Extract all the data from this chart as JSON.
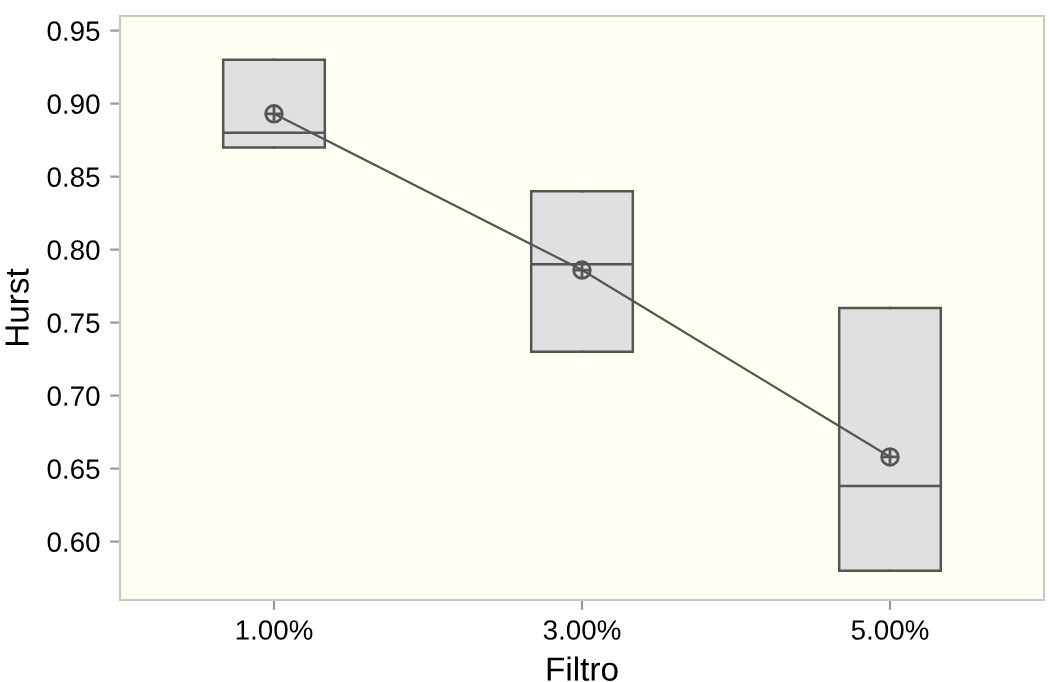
{
  "chart_data": {
    "type": "box",
    "xlabel": "Filtro",
    "ylabel": "Hurst",
    "categories": [
      "1.00%",
      "3.00%",
      "5.00%"
    ],
    "boxes": [
      {
        "low": 0.87,
        "q1": 0.87,
        "median": 0.88,
        "q3": 0.93,
        "high": 0.93
      },
      {
        "low": 0.73,
        "q1": 0.73,
        "median": 0.79,
        "q3": 0.84,
        "high": 0.84
      },
      {
        "low": 0.58,
        "q1": 0.58,
        "median": 0.638,
        "q3": 0.76,
        "high": 0.76
      }
    ],
    "color": "#e0e0e0",
    "series": [
      {
        "type": "line",
        "color": "#555555",
        "values": [
          0.893,
          0.786,
          0.658
        ]
      }
    ],
    "marker": "circle",
    "ylim": [
      0.56,
      0.96
    ],
    "yticks": [
      {
        "value": 0.6,
        "label": "0.60"
      },
      0.65,
      {
        "value": 0.7,
        "label": "0.70"
      },
      0.75,
      {
        "value": 0.8,
        "label": "0.80"
      },
      0.85,
      {
        "value": 0.9,
        "label": "0.90"
      },
      0.95
    ],
    "grid": false,
    "legend": false
  }
}
